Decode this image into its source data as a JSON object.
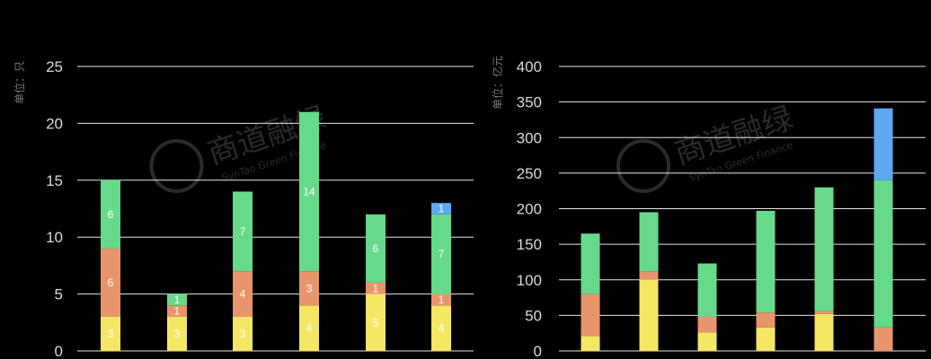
{
  "chart_data": [
    {
      "type": "bar",
      "stacked": true,
      "ylabel": "单位：只",
      "ylim": [
        0,
        25
      ],
      "yticks": [
        0,
        5,
        10,
        15,
        20,
        25
      ],
      "grid": true,
      "categories": [
        "",
        "",
        "",
        "",
        "",
        ""
      ],
      "series": [
        {
          "color": "#f5e663",
          "values": [
            3,
            3,
            3,
            4,
            5,
            4
          ]
        },
        {
          "color": "#e8956b",
          "values": [
            6,
            1,
            4,
            3,
            1,
            1
          ]
        },
        {
          "color": "#66d98a",
          "values": [
            6,
            1,
            7,
            14,
            6,
            7
          ]
        },
        {
          "color": "#5da9f0",
          "values": [
            0,
            0,
            0,
            0,
            0,
            1
          ]
        }
      ],
      "data_labels": true
    },
    {
      "type": "bar",
      "stacked": true,
      "ylabel": "单位：亿元",
      "ylim": [
        0,
        400
      ],
      "yticks": [
        0,
        50,
        100,
        150,
        200,
        250,
        300,
        350,
        400
      ],
      "grid": true,
      "categories": [
        "",
        "",
        "",
        "",
        "",
        ""
      ],
      "series": [
        {
          "color": "#f5e663",
          "values": [
            21,
            100,
            26,
            33,
            52,
            0
          ]
        },
        {
          "color": "#e8956b",
          "values": [
            59,
            12,
            22,
            21,
            4,
            33
          ]
        },
        {
          "color": "#66d98a",
          "values": [
            85,
            83,
            75,
            143,
            174,
            207
          ]
        },
        {
          "color": "#5da9f0",
          "values": [
            0,
            0,
            0,
            0,
            0,
            101
          ]
        }
      ],
      "data_labels": false
    }
  ],
  "watermark": {
    "cn": "商道融绿",
    "en": "SynTao Green Finance"
  }
}
